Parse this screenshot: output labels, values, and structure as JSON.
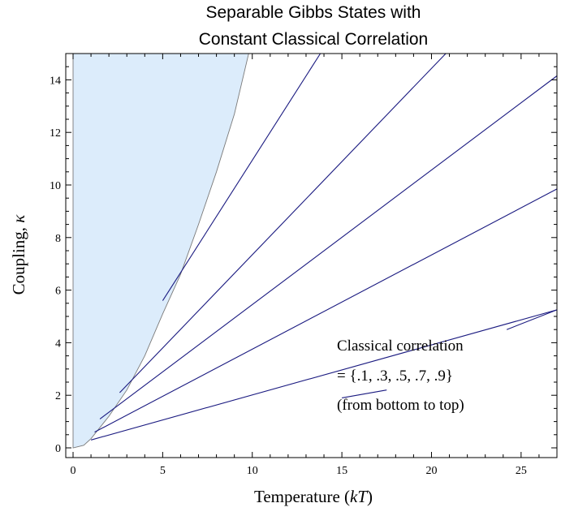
{
  "chart_data": {
    "type": "line",
    "title_lines": [
      "Separable Gibbs States with",
      "Constant Classical Correlation"
    ],
    "xlabel_plain": "Temperature (",
    "xlabel_italic": "kT",
    "xlabel_close": ")",
    "ylabel_plain": "Coupling, ",
    "ylabel_italic": "κ",
    "xlim": [
      0,
      27
    ],
    "ylim": [
      0,
      15
    ],
    "x_ticks": [
      0,
      5,
      10,
      15,
      20,
      25
    ],
    "y_ticks": [
      0,
      2,
      4,
      6,
      8,
      10,
      12,
      14
    ],
    "grid": false,
    "legend": "none",
    "colors": {
      "series": "#1a1a80",
      "region_fill": "#dcecfb",
      "region_edge": "#7a7a7a"
    },
    "separable_region": {
      "boundary": [
        [
          0,
          0
        ],
        [
          0.6,
          0.1
        ],
        [
          1,
          0.35
        ],
        [
          2,
          1.2
        ],
        [
          3,
          2.2
        ],
        [
          4,
          3.5
        ],
        [
          5,
          5.1
        ],
        [
          6,
          6.6
        ],
        [
          7,
          8.5
        ],
        [
          8,
          10.5
        ],
        [
          9,
          12.7
        ],
        [
          9.8,
          15
        ]
      ],
      "left": 0,
      "top": 15
    },
    "series": [
      {
        "values": [
          [
            1,
            0.3
          ],
          [
            27,
            5.25
          ]
        ]
      },
      {
        "values": [
          [
            1.2,
            0.6
          ],
          [
            27,
            9.85
          ]
        ]
      },
      {
        "values": [
          [
            1.5,
            1.1
          ],
          [
            27,
            14.15
          ]
        ]
      },
      {
        "values": [
          [
            2.6,
            2.1
          ],
          [
            20.8,
            15
          ]
        ]
      },
      {
        "values": [
          [
            5,
            5.6
          ],
          [
            13.8,
            15
          ]
        ]
      }
    ],
    "annotation": {
      "lines": [
        "Classical correlation",
        "= {.1, .3, .5, .7, .9}",
        "(from bottom to top)"
      ],
      "pointer": [
        [
          15,
          1.9
        ],
        [
          17.5,
          2.2
        ]
      ],
      "pointer2": [
        [
          24.2,
          4.5
        ],
        [
          27,
          5.25
        ]
      ]
    }
  }
}
